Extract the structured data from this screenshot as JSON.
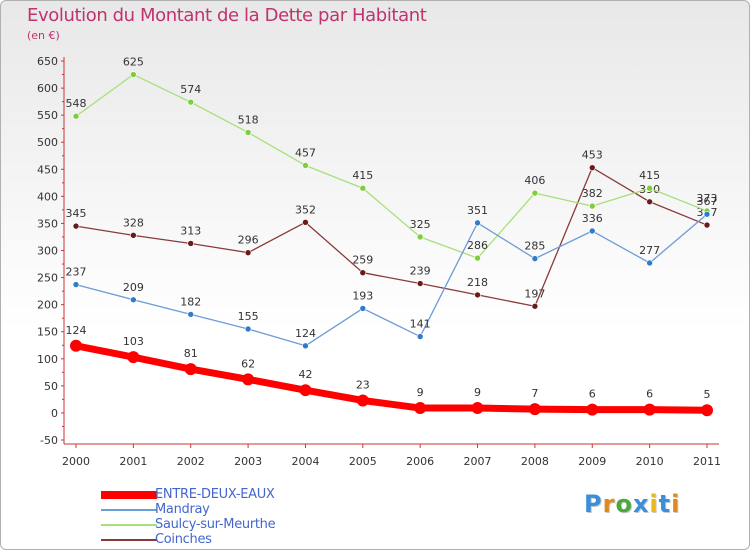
{
  "title": "Evolution du Montant de la Dette par Habitant",
  "subtitle": "(en €)",
  "logo": {
    "text": "Proxiti",
    "letters": [
      "P",
      "r",
      "o",
      "x",
      "i",
      "t",
      "i"
    ],
    "colors": [
      "#3a8fd8",
      "#e08a1e",
      "#4aa83c",
      "#3a8fd8",
      "#e8b81c",
      "#3a8fd8",
      "#e08a1e"
    ]
  },
  "chart_data": {
    "type": "line",
    "title": "Evolution du Montant de la Dette par Habitant",
    "ylabel": "(en €)",
    "xlabel": "",
    "x": [
      "2000",
      "2001",
      "2002",
      "2003",
      "2004",
      "2005",
      "2006",
      "2007",
      "2008",
      "2009",
      "2010",
      "2011"
    ],
    "ylim": [
      -50,
      650
    ],
    "yticks": [
      "-50",
      "0",
      "50",
      "100",
      "150",
      "200",
      "250",
      "300",
      "350",
      "400",
      "450",
      "500",
      "550",
      "600",
      "650"
    ],
    "grid": false,
    "legend": "bottom-left",
    "series": [
      {
        "name": "ENTRE-DEUX-EAUX",
        "color": "#ff0000",
        "marker": "#ff0000",
        "values": [
          124,
          103,
          81,
          62,
          42,
          23,
          9,
          9,
          7,
          6,
          6,
          5
        ],
        "labels": [
          "124",
          "103",
          "81",
          "62",
          "42",
          "23",
          "9",
          "9",
          "7",
          "6",
          "6",
          "5"
        ]
      },
      {
        "name": "Mandray",
        "color": "#6b9cd6",
        "marker": "#2f7cc8",
        "values": [
          237,
          209,
          182,
          155,
          124,
          193,
          141,
          351,
          285,
          336,
          277,
          367
        ],
        "labels": [
          "237",
          "209",
          "182",
          "155",
          "124",
          "193",
          "141",
          "351",
          "285",
          "336",
          "277",
          "367"
        ]
      },
      {
        "name": "Saulcy-sur-Meurthe",
        "color": "#a6e07a",
        "marker": "#7fcc3c",
        "values": [
          548,
          625,
          574,
          518,
          457,
          415,
          325,
          286,
          406,
          382,
          415,
          373
        ],
        "labels": [
          "548",
          "625",
          "574",
          "518",
          "457",
          "415",
          "325",
          "286",
          "406",
          "382",
          "415",
          "373"
        ]
      },
      {
        "name": "Coinches",
        "color": "#8a3a3a",
        "marker": "#6a1a1a",
        "values": [
          345,
          328,
          313,
          296,
          352,
          259,
          239,
          218,
          197,
          453,
          390,
          347
        ],
        "labels": [
          "345",
          "328",
          "313",
          "296",
          "352",
          "259",
          "239",
          "218",
          "197",
          "453",
          "390",
          "347"
        ]
      }
    ]
  }
}
